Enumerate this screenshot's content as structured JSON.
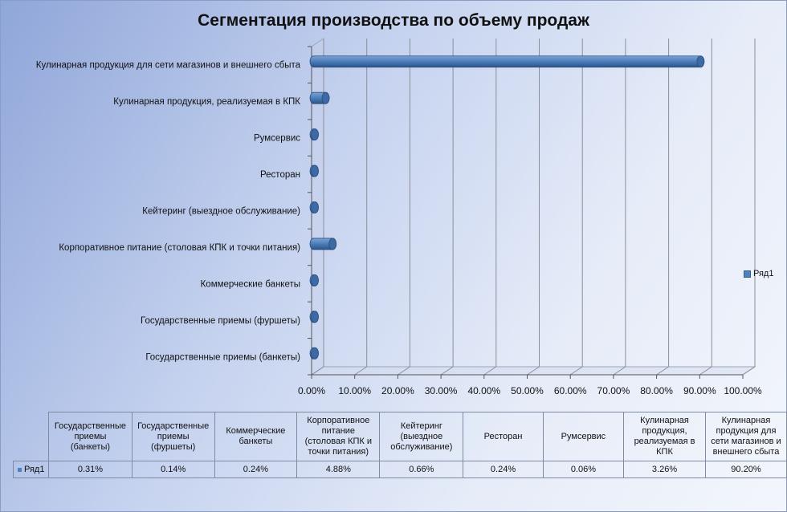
{
  "chart_data": {
    "type": "bar",
    "orientation": "horizontal",
    "title": "Сегментация производства по объему продаж",
    "categories": [
      "Государственные приемы (банкеты)",
      "Государственные приемы (фуршеты)",
      "Коммерческие банкеты",
      "Корпоративное питание  (столовая КПК и точки питания)",
      "Кейтеринг (выездное обслуживание)",
      "Ресторан",
      "Румсервис",
      "Кулинарная продукция, реализуемая в КПК",
      "Кулинарная продукция для сети магазинов и внешнего сбыта"
    ],
    "series": [
      {
        "name": "Ряд1",
        "values": [
          0.31,
          0.14,
          0.24,
          4.88,
          0.66,
          0.24,
          0.06,
          3.26,
          90.2
        ]
      }
    ],
    "xlim": [
      0,
      100
    ],
    "xticks": [
      "0.00%",
      "10.00%",
      "20.00%",
      "30.00%",
      "40.00%",
      "50.00%",
      "60.00%",
      "70.00%",
      "80.00%",
      "90.00%",
      "100.00%"
    ],
    "grid": true,
    "legend_position": "right",
    "bar_color": "#4f81bd",
    "data_table": {
      "headers": [
        [
          "Государственные",
          "приемы",
          "(банкеты)"
        ],
        [
          "Государственные",
          "приемы",
          "(фуршеты)"
        ],
        [
          "Коммерческие",
          "банкеты"
        ],
        [
          "Корпоративное",
          "питание",
          "(столовая КПК и",
          "точки питания)"
        ],
        [
          "Кейтеринг",
          "(выездное",
          "обслуживание)"
        ],
        [
          "Ресторан"
        ],
        [
          "Румсервис"
        ],
        [
          "Кулинарная",
          "продукция,",
          "реализуемая в",
          "КПК"
        ],
        [
          "Кулинарная",
          "продукция для",
          "сети магазинов и",
          "внешнего сбыта"
        ]
      ],
      "row_label": "Ряд1",
      "values": [
        "0.31%",
        "0.14%",
        "0.24%",
        "4.88%",
        "0.66%",
        "0.24%",
        "0.06%",
        "3.26%",
        "90.20%"
      ]
    }
  }
}
